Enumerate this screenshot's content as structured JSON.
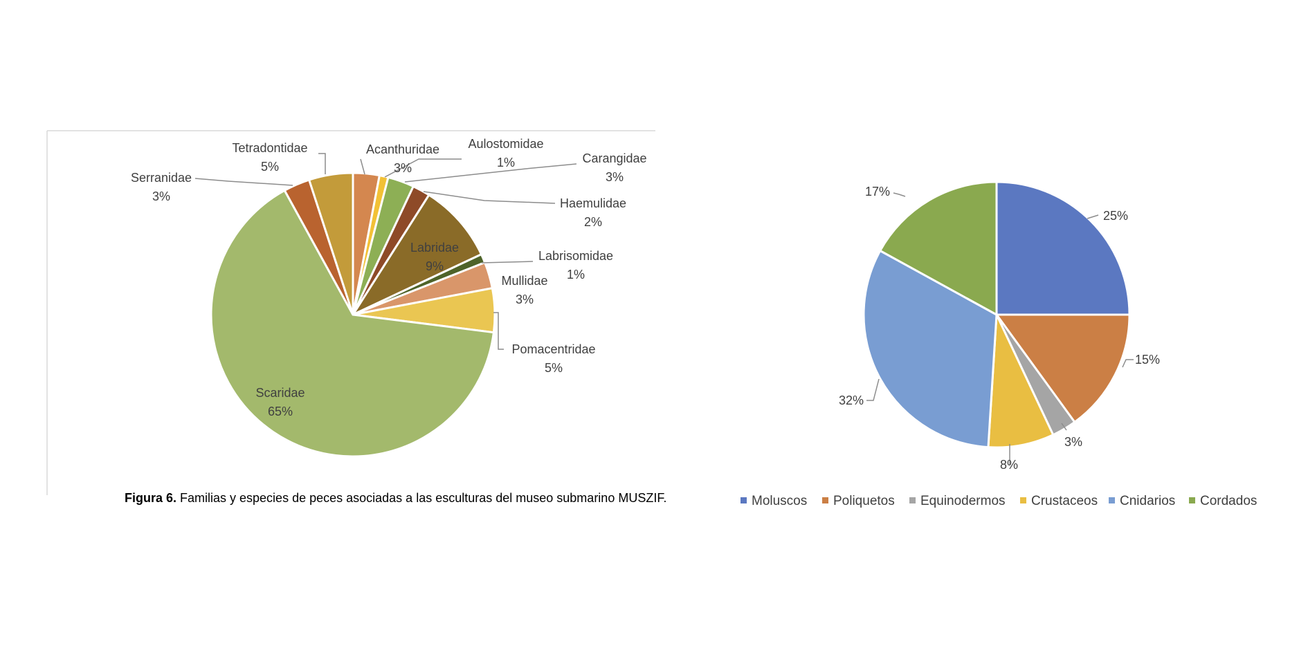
{
  "caption": {
    "bold": "Figura 6.",
    "text": " Familias y especies de peces asociadas a las esculturas del museo submarino MUSZIF."
  },
  "chart_data": [
    {
      "type": "pie",
      "categories": [
        "Acanthuridae",
        "Aulostomidae",
        "Carangidae",
        "Haemulidae",
        "Labridae",
        "Labrisomidae",
        "Mullidae",
        "Pomacentridae",
        "Scaridae",
        "Serranidae",
        "Tetradontidae"
      ],
      "values": [
        3,
        1,
        3,
        2,
        9,
        1,
        3,
        5,
        65,
        3,
        5
      ],
      "labels": [
        "3%",
        "1%",
        "3%",
        "2%",
        "9%",
        "1%",
        "3%",
        "5%",
        "65%",
        "3%",
        "5%"
      ],
      "colors": [
        "#D4874F",
        "#F2C136",
        "#8DAF55",
        "#8E4A28",
        "#8A6B28",
        "#4E6329",
        "#D9966A",
        "#EAC652",
        "#A3B96C",
        "#B9632F",
        "#C39B3A"
      ],
      "start_angle_deg": 0,
      "direction": "clockwise"
    },
    {
      "type": "pie",
      "categories": [
        "Moluscos",
        "Poliquetos",
        "Equinodermos",
        "Crustaceos",
        "Cnidarios",
        "Cordados"
      ],
      "values": [
        25,
        15,
        3,
        8,
        32,
        17
      ],
      "labels": [
        "25%",
        "15%",
        "3%",
        "8%",
        "32%",
        "17%"
      ],
      "colors": [
        "#5B78C1",
        "#CB7F45",
        "#A5A5A5",
        "#E9BE42",
        "#799DD2",
        "#8AA94F"
      ],
      "legend": "bottom",
      "start_angle_deg": 0,
      "direction": "clockwise"
    }
  ]
}
